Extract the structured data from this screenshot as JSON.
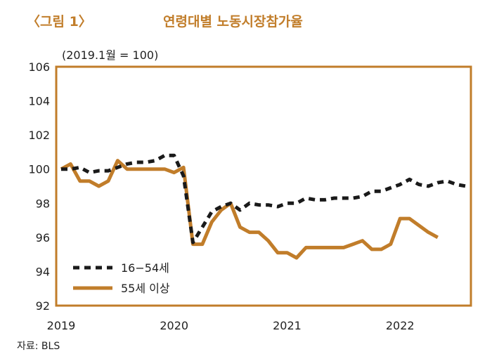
{
  "header": {
    "figure_label": "〈그림 1〉",
    "title": "연령대별 노동시장참가율"
  },
  "unit_note": "(2019.1월 = 100)",
  "source": "자료: BLS",
  "colors": {
    "accent": "#c17d2a",
    "frame": "#c17d2a",
    "series_16_54": "#1a1a1a",
    "series_55_plus": "#c17d2a"
  },
  "chart_data": {
    "type": "line",
    "title": "연령대별 노동시장참가율",
    "xlabel": "",
    "ylabel": "(2019.1월 = 100)",
    "x_ticks": [
      "2019",
      "2020",
      "2021",
      "2022"
    ],
    "y_ticks": [
      "92",
      "94",
      "96",
      "98",
      "100",
      "102",
      "104",
      "106"
    ],
    "ylim": [
      92,
      106
    ],
    "xlim": [
      0,
      43
    ],
    "legend_position": "bottom-left",
    "series": [
      {
        "name": "16−54세",
        "style": "dashed",
        "x": [
          0,
          1,
          2,
          3,
          4,
          5,
          6,
          7,
          8,
          9,
          10,
          11,
          12,
          13,
          14,
          15,
          16,
          17,
          18,
          19,
          20,
          21,
          22,
          23,
          24,
          25,
          26,
          27,
          28,
          29,
          30,
          31,
          32,
          33,
          34,
          35,
          36,
          37,
          38,
          39,
          40,
          41,
          42,
          43
        ],
        "values": [
          100.0,
          100.0,
          100.1,
          99.8,
          99.9,
          99.9,
          100.1,
          100.3,
          100.4,
          100.4,
          100.5,
          100.8,
          100.8,
          99.6,
          95.7,
          96.6,
          97.5,
          97.8,
          98.0,
          97.6,
          98.0,
          97.9,
          97.9,
          97.8,
          98.0,
          98.0,
          98.3,
          98.2,
          98.2,
          98.3,
          98.3,
          98.3,
          98.4,
          98.7,
          98.7,
          98.9,
          99.1,
          99.4,
          99.1,
          99.0,
          99.2,
          99.3,
          99.1,
          99.0
        ]
      },
      {
        "name": "55세 이상",
        "style": "solid",
        "x": [
          0,
          1,
          2,
          3,
          4,
          5,
          6,
          7,
          8,
          9,
          10,
          11,
          12,
          13,
          14,
          15,
          16,
          17,
          18,
          19,
          20,
          21,
          22,
          23,
          24,
          25,
          26,
          27,
          28,
          29,
          30,
          31,
          32,
          33,
          34,
          35,
          36,
          37,
          38,
          39,
          40
        ],
        "values": [
          100.0,
          100.3,
          99.3,
          99.3,
          99.0,
          99.3,
          100.5,
          100.0,
          100.0,
          100.0,
          100.0,
          100.0,
          99.8,
          100.1,
          95.6,
          95.6,
          96.9,
          97.6,
          98.0,
          96.6,
          96.3,
          96.3,
          95.8,
          95.1,
          95.1,
          94.8,
          95.4,
          95.4,
          95.4,
          95.4,
          95.4,
          95.6,
          95.8,
          95.3,
          95.3,
          95.6,
          97.1,
          97.1,
          96.7,
          96.3,
          96.0
        ]
      }
    ]
  }
}
